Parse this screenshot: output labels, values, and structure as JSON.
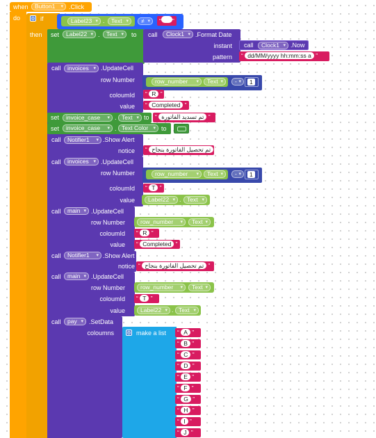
{
  "event": {
    "when": "when",
    "component": "Button1",
    "event": ".Click",
    "do": "do"
  },
  "if_block": {
    "if": "if",
    "then": "then",
    "label": "Label23",
    "prop": "Text",
    "op": "≠",
    "empty": ""
  },
  "set1": {
    "set": "set",
    "component": "Label22",
    "prop": "Text",
    "to": "to",
    "call": "call",
    "clock": "Clock1",
    "method": ".Format Date",
    "instant": "instant",
    "now_call": "call",
    "now_comp": "Clock1",
    "now": ".Now",
    "pattern": "pattern",
    "pattern_value": "dd/MM/yyyy hh:mm:ss a"
  },
  "upd1": {
    "call": "call",
    "component": "invoices",
    "method": ".UpdateCell",
    "row": "row Number",
    "row_var": "row_number",
    "row_prop": "Text",
    "minus": "-",
    "num": "1",
    "col": "coloumId",
    "col_value": "R",
    "value": "value",
    "value_value": "Completed"
  },
  "set2": {
    "set": "set",
    "component": "invoice_case",
    "prop": "Text",
    "to": "to",
    "value": "تم تسديد الفاتورة"
  },
  "set3": {
    "set": "set",
    "component": "invoice_case",
    "prop": "Text Color",
    "to": "to"
  },
  "alert1": {
    "call": "call",
    "component": "Notifier1",
    "method": ".Show Alert",
    "notice": "notice",
    "value": "تم تحصيل الفاتورة بنجاح"
  },
  "upd2": {
    "call": "call",
    "component": "invoices",
    "method": ".UpdateCell",
    "row": "row Number",
    "row_var": "row_number",
    "row_prop": "Text",
    "minus": "-",
    "num": "1",
    "col": "coloumId",
    "col_value": "T",
    "value": "value",
    "value_comp": "Label22",
    "value_prop": "Text"
  },
  "upd3": {
    "call": "call",
    "component": "main",
    "method": ".UpdateCell",
    "row": "row Number",
    "row_var": "row_number",
    "row_prop": "Text",
    "col": "coloumId",
    "col_value": "R",
    "value": "value",
    "value_value": "Completed"
  },
  "alert2": {
    "call": "call",
    "component": "Notifier1",
    "method": ".Show Alert",
    "notice": "notice",
    "value": "تم تحصيل الفاتورة بنجاح"
  },
  "upd4": {
    "call": "call",
    "component": "main",
    "method": ".UpdateCell",
    "row": "row Number",
    "row_var": "row_number",
    "row_prop": "Text",
    "col": "coloumId",
    "col_value": "T",
    "value": "value",
    "value_comp": "Label22",
    "value_prop": "Text"
  },
  "setdata": {
    "call": "call",
    "component": "pay",
    "method": ".SetData",
    "columns": "coloumns",
    "make_list": "make a list",
    "items": [
      "A",
      "B",
      "C",
      "D",
      "E",
      "F",
      "G",
      "H",
      "I",
      "J"
    ]
  },
  "colors": {
    "event": "#ffa400",
    "control": "#b8863b",
    "component": "#5b39b0",
    "setter": "#3f9a3a",
    "getter": "#8bc34a",
    "text": "#d81b60",
    "math": "#3949ab",
    "logic": "#2962ff",
    "list": "#1ea7e8",
    "color_swatch": "#3f9a3a"
  }
}
